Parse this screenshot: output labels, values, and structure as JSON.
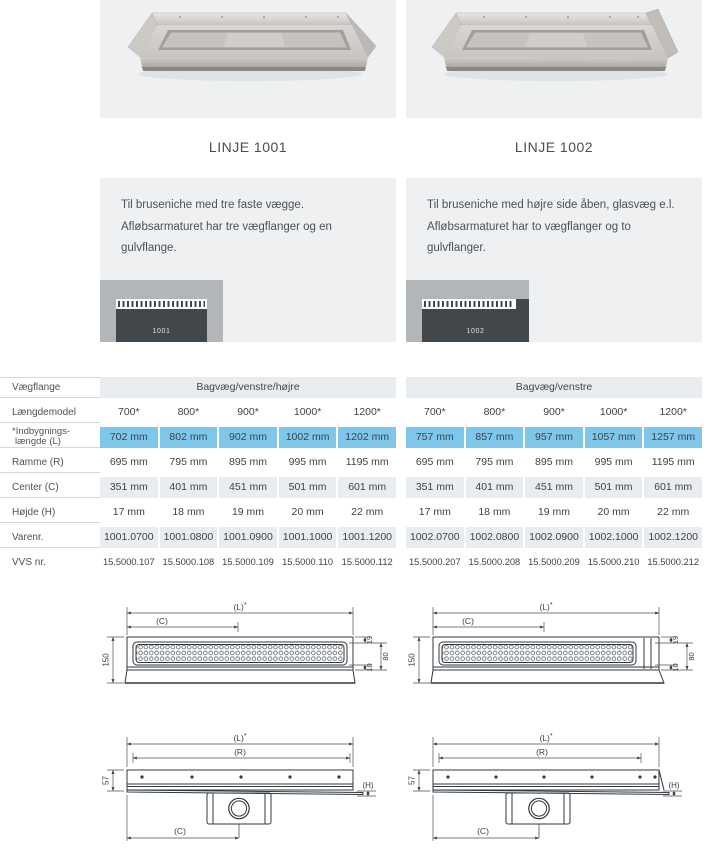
{
  "colors": {
    "panel_bg": "#eef0f1",
    "accent_blue": "#7fc7ea",
    "cell_gray": "#eaedef",
    "diagram_bg": "#b2b6b8",
    "diagram_dark": "#41474b"
  },
  "products": [
    {
      "title": "LINJE 1001",
      "description_lines": [
        "Til bruseniche med tre faste vægge.",
        "Afløbsarmaturet har tre vægflanger og en",
        "gulvflange."
      ],
      "diagram_label": "1001"
    },
    {
      "title": "LINJE 1002",
      "description_lines": [
        "Til bruseniche med højre side åben, glasvæg e.l.",
        "Afløbsarmaturet har to vægflanger og to",
        "gulvflanger."
      ],
      "diagram_label": "1002"
    }
  ],
  "spec_table": {
    "labels": {
      "vaegflange": "Vægflange",
      "laengdemodel": "Længdemodel",
      "indbygning1": "*Indbygnings-",
      "indbygning2": "længde (L)",
      "ramme": "Ramme (R)",
      "center": "Center (C)",
      "hoejde": "Højde (H)",
      "varenr": "Varenr.",
      "vvs": "VVS nr."
    },
    "rows": [
      {
        "key": "laengdemodel",
        "style": "plain"
      },
      {
        "key": "indbygning",
        "style": "blue"
      },
      {
        "key": "ramme",
        "style": "plain"
      },
      {
        "key": "center",
        "style": "gray"
      },
      {
        "key": "hoejde",
        "style": "plain"
      },
      {
        "key": "varenr",
        "style": "gray"
      },
      {
        "key": "vvs",
        "style": "plain small"
      }
    ],
    "groups": [
      {
        "header": "Bagvæg/venstre/højre",
        "values": {
          "laengdemodel": [
            "700*",
            "800*",
            "900*",
            "1000*",
            "1200*"
          ],
          "indbygning": [
            "702 mm",
            "802 mm",
            "902 mm",
            "1002 mm",
            "1202 mm"
          ],
          "ramme": [
            "695 mm",
            "795 mm",
            "895 mm",
            "995 mm",
            "1195 mm"
          ],
          "center": [
            "351 mm",
            "401 mm",
            "451 mm",
            "501 mm",
            "601 mm"
          ],
          "hoejde": [
            "17 mm",
            "18 mm",
            "19 mm",
            "20 mm",
            "22 mm"
          ],
          "varenr": [
            "1001.0700",
            "1001.0800",
            "1001.0900",
            "1001.1000",
            "1001.1200"
          ],
          "vvs": [
            "15.5000.107",
            "15.5000.108",
            "15.5000.109",
            "15.5000.110",
            "15.5000.112"
          ]
        }
      },
      {
        "header": "Bagvæg/venstre",
        "values": {
          "laengdemodel": [
            "700*",
            "800*",
            "900*",
            "1000*",
            "1200*"
          ],
          "indbygning": [
            "757 mm",
            "857 mm",
            "957 mm",
            "1057 mm",
            "1257 mm"
          ],
          "ramme": [
            "695 mm",
            "795 mm",
            "895 mm",
            "995 mm",
            "1195 mm"
          ],
          "center": [
            "351 mm",
            "401 mm",
            "451 mm",
            "501 mm",
            "601 mm"
          ],
          "hoejde": [
            "17 mm",
            "18 mm",
            "19 mm",
            "20 mm",
            "22 mm"
          ],
          "varenr": [
            "1002.0700",
            "1002.0800",
            "1002.0900",
            "1002.1000",
            "1002.1200"
          ],
          "vvs": [
            "15.5000.207",
            "15.5000.208",
            "15.5000.209",
            "15.5000.210",
            "15.5000.212"
          ]
        }
      }
    ]
  },
  "drawings": {
    "top": {
      "L": "(L)",
      "star": "*",
      "C": "(C)",
      "h150": "150",
      "d19": "19",
      "d80": "80",
      "d10": "10"
    },
    "side": {
      "L": "(L)",
      "star": "*",
      "R": "(R)",
      "C": "(C)",
      "h57": "57",
      "H": "(H)"
    }
  }
}
